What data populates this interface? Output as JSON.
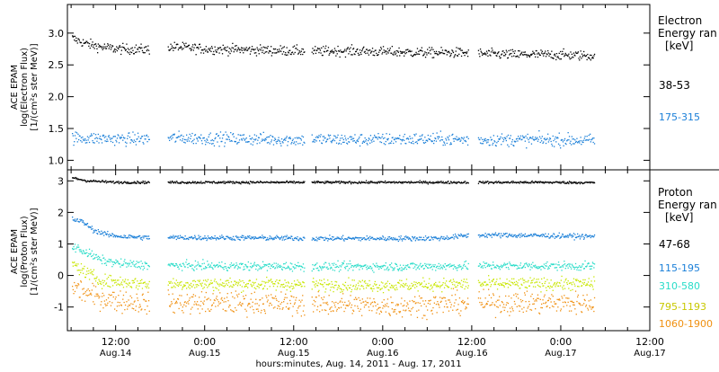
{
  "colors": {
    "frame": "#000000",
    "electron_38_53": "#000000",
    "electron_175_315": "#1a7fd8",
    "proton_47_68": "#000000",
    "proton_115_195": "#1a7fd8",
    "proton_310_580": "#28dcc8",
    "proton_795_1193": "#c8e600",
    "proton_1060_1900": "#f09010"
  },
  "x_axis": {
    "title": "hours:minutes, Aug. 14, 2011 - Aug. 17, 2011",
    "ticks": [
      {
        "time": "12:00",
        "date": "Aug.14",
        "hour": 12
      },
      {
        "time": "0:00",
        "date": "Aug.15",
        "hour": 24
      },
      {
        "time": "12:00",
        "date": "Aug.15",
        "hour": 36
      },
      {
        "time": "0:00",
        "date": "Aug.16",
        "hour": 48
      },
      {
        "time": "12:00",
        "date": "Aug.16",
        "hour": 60
      },
      {
        "time": "0:00",
        "date": "Aug.17",
        "hour": 72
      },
      {
        "time": "12:00",
        "date": "Aug.17",
        "hour": 84
      }
    ]
  },
  "chart_data": [
    {
      "type": "scatter",
      "panel": "electron",
      "ylabel_lines": [
        "ACE EPAM",
        "log(Electron Flux)",
        "[1/(cm²s ster MeV)]"
      ],
      "xlim_hours": [
        5.5,
        84
      ],
      "ylim": [
        0.85,
        3.45
      ],
      "yticks": [
        1.0,
        1.5,
        2.0,
        2.5,
        3.0
      ],
      "ytick_labels": [
        "1.0",
        "1.5",
        "2.0",
        "2.5",
        "3.0"
      ],
      "legend_title": [
        "Electron",
        "Energy ran",
        "[keV]"
      ],
      "data_gaps_hours": [
        [
          16.5,
          19.0
        ],
        [
          37.4,
          38.4
        ],
        [
          59.5,
          60.8
        ]
      ],
      "series": [
        {
          "name": "38-53",
          "color_key": "electron_38_53",
          "x_hours": [
            6,
            8,
            10,
            12,
            16,
            20,
            24,
            28,
            32,
            36,
            39,
            42,
            46,
            50,
            54,
            58,
            62,
            66,
            70,
            74,
            76.5
          ],
          "y": [
            2.93,
            2.84,
            2.79,
            2.76,
            2.75,
            2.79,
            2.76,
            2.75,
            2.74,
            2.73,
            2.72,
            2.73,
            2.72,
            2.71,
            2.7,
            2.7,
            2.68,
            2.67,
            2.67,
            2.66,
            2.65
          ],
          "scatter": 0.04
        },
        {
          "name": "175-315",
          "color_key": "electron_175_315",
          "x_hours": [
            6,
            10,
            14,
            20,
            26,
            32,
            36,
            39,
            44,
            50,
            56,
            60,
            64,
            70,
            76.5
          ],
          "y": [
            1.36,
            1.35,
            1.34,
            1.36,
            1.35,
            1.34,
            1.33,
            1.34,
            1.33,
            1.34,
            1.34,
            1.33,
            1.33,
            1.33,
            1.32
          ],
          "scatter": 0.05
        }
      ]
    },
    {
      "type": "scatter",
      "panel": "proton",
      "ylabel_lines": [
        "ACE EPAM",
        "log(Proton Flux)",
        "[1/(cm²s ster MeV)]"
      ],
      "xlim_hours": [
        5.5,
        84
      ],
      "ylim": [
        -1.75,
        3.35
      ],
      "yticks": [
        -1,
        0,
        1,
        2,
        3
      ],
      "ytick_labels": [
        "-1",
        "0",
        "1",
        "2",
        "3"
      ],
      "legend_title": [
        "Proton",
        "Energy ran",
        "[keV]"
      ],
      "data_gaps_hours": [
        [
          16.5,
          19.0
        ],
        [
          37.4,
          38.4
        ],
        [
          59.5,
          60.8
        ]
      ],
      "series": [
        {
          "name": "47-68",
          "color_key": "proton_47_68",
          "x_hours": [
            6,
            8,
            12,
            20,
            30,
            40,
            50,
            60,
            70,
            76.5
          ],
          "y": [
            3.12,
            3.02,
            2.97,
            2.97,
            2.97,
            2.97,
            2.97,
            2.97,
            2.97,
            2.96
          ],
          "scatter": 0.02
        },
        {
          "name": "115-195",
          "color_key": "proton_115_195",
          "x_hours": [
            6,
            7.5,
            9,
            11,
            13,
            16,
            20,
            30,
            40,
            50,
            56,
            59,
            62,
            70,
            76.5
          ],
          "y": [
            1.8,
            1.72,
            1.45,
            1.3,
            1.25,
            1.22,
            1.22,
            1.21,
            1.19,
            1.19,
            1.2,
            1.28,
            1.3,
            1.28,
            1.25
          ],
          "scatter": 0.04
        },
        {
          "name": "310-580",
          "color_key": "proton_310_580",
          "x_hours": [
            6,
            8,
            10,
            13,
            16,
            20,
            30,
            40,
            50,
            60,
            70,
            76.5
          ],
          "y": [
            0.95,
            0.75,
            0.5,
            0.38,
            0.35,
            0.33,
            0.31,
            0.3,
            0.3,
            0.32,
            0.32,
            0.31
          ],
          "scatter": 0.07
        },
        {
          "name": "795-1193",
          "color_key": "proton_795_1193",
          "x_hours": [
            6,
            8,
            10,
            13,
            16,
            20,
            30,
            40,
            50,
            60,
            70,
            76.5
          ],
          "y": [
            0.4,
            0.1,
            -0.15,
            -0.2,
            -0.25,
            -0.25,
            -0.25,
            -0.28,
            -0.3,
            -0.25,
            -0.25,
            -0.25
          ],
          "scatter": 0.1
        },
        {
          "name": "1060-1900",
          "color_key": "proton_1060_1900",
          "x_hours": [
            6,
            8,
            10,
            13,
            16,
            20,
            30,
            40,
            50,
            60,
            70,
            76.5
          ],
          "y": [
            -0.3,
            -0.55,
            -0.7,
            -0.8,
            -0.85,
            -0.85,
            -0.85,
            -0.9,
            -0.95,
            -0.85,
            -0.85,
            -0.85
          ],
          "scatter": 0.18
        }
      ]
    }
  ]
}
